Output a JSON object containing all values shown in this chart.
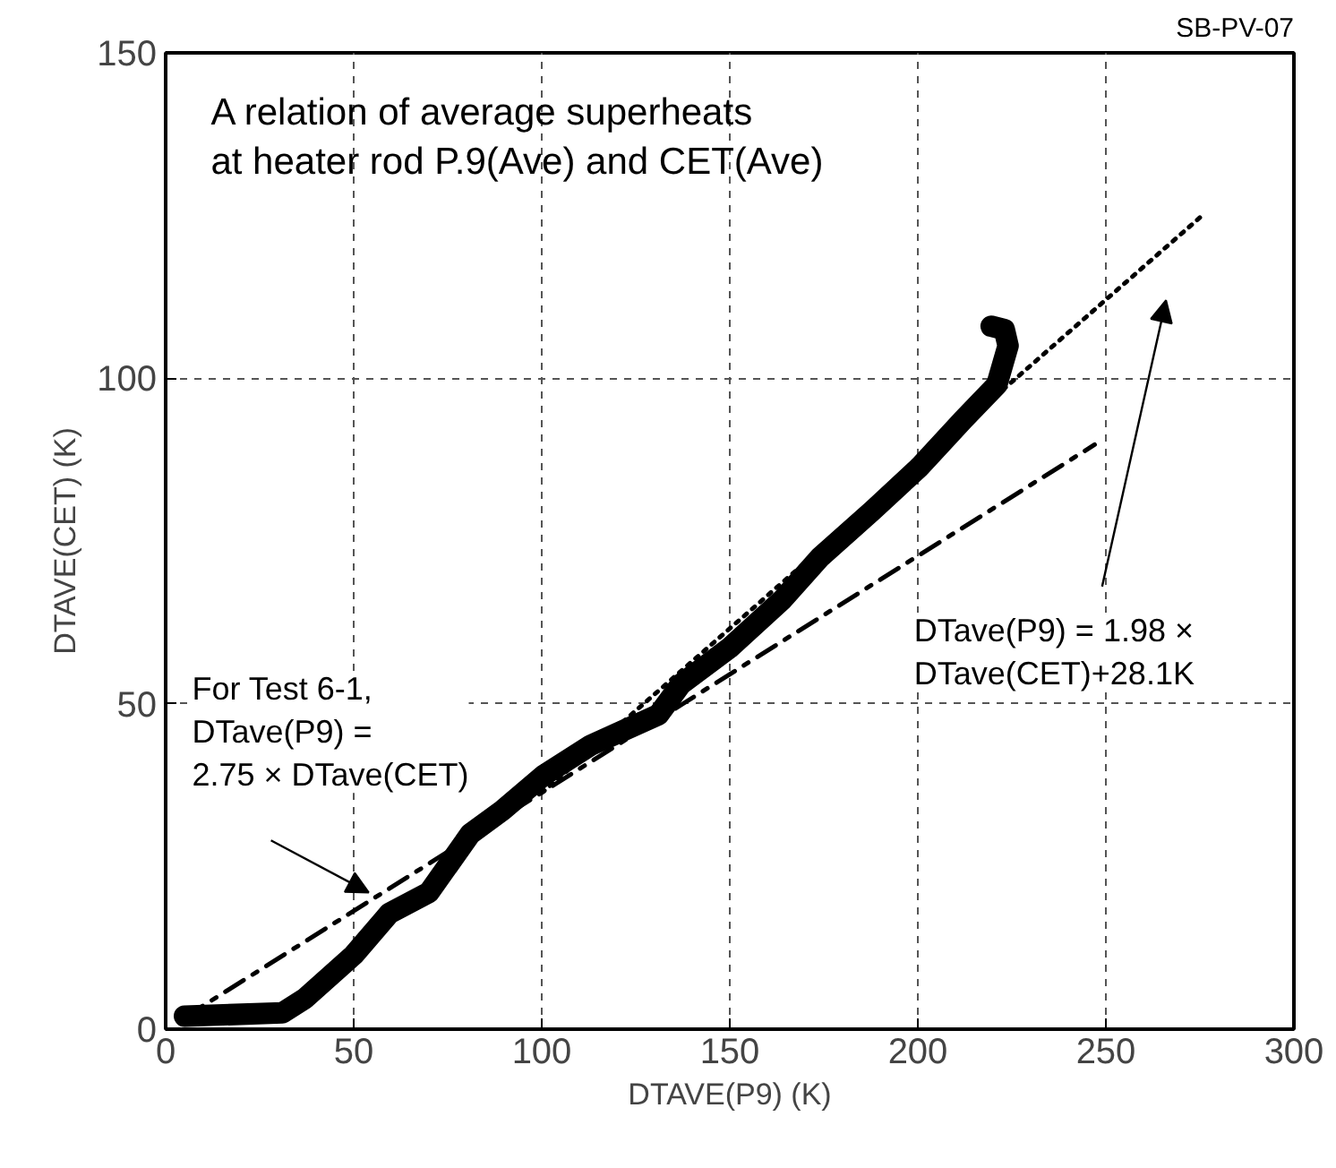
{
  "chart_data": {
    "type": "line",
    "title": "A relation of average superheats\nat heater rod P.9(Ave) and CET(Ave)",
    "xlabel": "DTAVE(P9) (K)",
    "ylabel": "DTAVE(CET) (K)",
    "xlim": [
      0,
      300
    ],
    "ylim": [
      0,
      150
    ],
    "xticks": [
      0,
      50,
      100,
      150,
      200,
      250,
      300
    ],
    "yticks": [
      0,
      50,
      100,
      150
    ],
    "grid": true,
    "marker": "none",
    "series": [
      {
        "color": "#000000",
        "line_style": "solid",
        "x": [
          5,
          31,
          37,
          50,
          59.5,
          70,
          81,
          89.5,
          100.5,
          113,
          131,
          137,
          150,
          164,
          174,
          188,
          200.5,
          212,
          221,
          224,
          223,
          219.5
        ],
        "values": [
          2,
          2.5,
          4.7,
          11.4,
          17.8,
          21,
          30,
          33.6,
          39,
          43.6,
          48.3,
          53,
          58.6,
          66,
          72.5,
          79.7,
          86.4,
          93.6,
          99,
          105,
          107.5,
          108
        ]
      },
      {
        "color": "#000000",
        "line_style": "dashdot",
        "x": [
          5,
          247
        ],
        "values": [
          1.8,
          89.8
        ]
      },
      {
        "color": "#000000",
        "line_style": "dotted",
        "x": [
          100,
          276
        ],
        "values": [
          36.3,
          125.2
        ]
      }
    ],
    "annotations": [
      "SB-PV-07",
      "For Test 6-1,\nDTave(P9) =\n2.75 × DTave(CET)",
      "DTave(P9) = 1.98 ×\nDTave(CET)+28.1K"
    ]
  }
}
